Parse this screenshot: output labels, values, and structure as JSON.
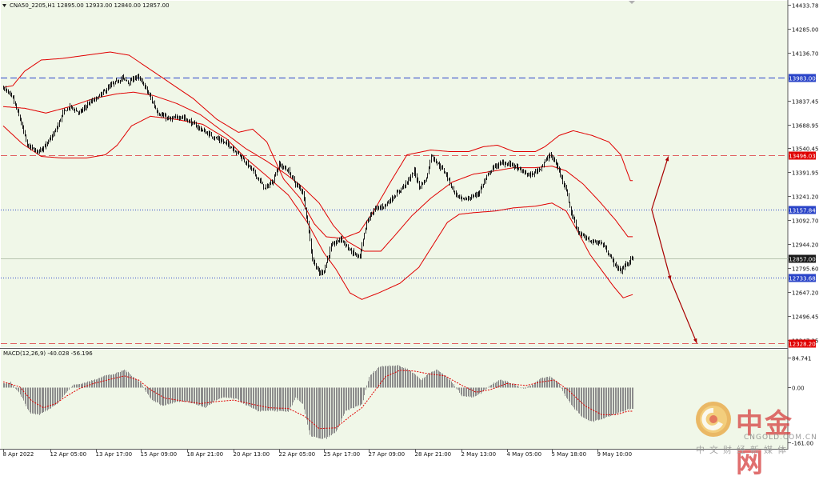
{
  "header": {
    "symbol_line": "CNA50_2205,H1  12895.00 12933.00 12840.00 12857.00",
    "macd_line": "MACD(12,26,9) -40.028 -56.196"
  },
  "colors": {
    "main_bg": "#f0f7e8",
    "candle": "#1a1a1a",
    "band": "#e00000",
    "macd_hist": "#8c8c8c",
    "macd_signal": "#e00000",
    "price_label_bg": "#1a1a1a",
    "blue_line": "#2a44c8",
    "red_line": "#e06060",
    "arrow": "#a80000"
  },
  "watermark": {
    "cn": "中金网",
    "en": "CNGOLD.COM.CN",
    "sub": "中文财经新媒体"
  },
  "chart_data": [
    {
      "type": "candlestick",
      "name": "main",
      "ylim": [
        12347.35,
        14433.78
      ],
      "y_ticks": [
        "14433.78",
        "14285.00",
        "14136.70",
        "13837.45",
        "13688.95",
        "13540.45",
        "13391.95",
        "13241.20",
        "13092.70",
        "12944.20",
        "12795.60",
        "12647.20",
        "12496.45",
        "12347.35"
      ],
      "x_ticks": [
        "8 Apr 2022",
        "12 Apr 05:00",
        "13 Apr 17:00",
        "15 Apr 09:00",
        "18 Apr 21:00",
        "20 Apr 13:00",
        "22 Apr 05:00",
        "25 Apr 17:00",
        "27 Apr 09:00",
        "28 Apr 21:00",
        "2 May 13:00",
        "4 May 05:00",
        "5 May 18:00",
        "9 May 10:00"
      ],
      "levels": [
        {
          "value": 13983.0,
          "label": "13983.00",
          "style": "blue-dash"
        },
        {
          "value": 13496.03,
          "label": "13496.03",
          "style": "red-dash"
        },
        {
          "value": 13157.84,
          "label": "13157.84",
          "style": "blue-dot"
        },
        {
          "value": 12857.0,
          "label": "12857.00",
          "style": "price"
        },
        {
          "value": 12733.68,
          "label": "12733.68",
          "style": "blue-dot"
        },
        {
          "value": 12328.2,
          "label": "12328.20",
          "style": "red-dash"
        }
      ],
      "close_anchors": [
        [
          0,
          13920
        ],
        [
          8,
          13850
        ],
        [
          14,
          13720
        ],
        [
          20,
          13560
        ],
        [
          28,
          13520
        ],
        [
          36,
          13560
        ],
        [
          44,
          13650
        ],
        [
          50,
          13760
        ],
        [
          56,
          13800
        ],
        [
          64,
          13760
        ],
        [
          72,
          13820
        ],
        [
          80,
          13860
        ],
        [
          90,
          13930
        ],
        [
          100,
          13980
        ],
        [
          106,
          13950
        ],
        [
          112,
          13990
        ],
        [
          118,
          13940
        ],
        [
          122,
          13880
        ],
        [
          130,
          13760
        ],
        [
          140,
          13720
        ],
        [
          150,
          13740
        ],
        [
          160,
          13690
        ],
        [
          170,
          13640
        ],
        [
          180,
          13600
        ],
        [
          190,
          13560
        ],
        [
          200,
          13490
        ],
        [
          210,
          13400
        ],
        [
          220,
          13290
        ],
        [
          226,
          13330
        ],
        [
          232,
          13440
        ],
        [
          240,
          13400
        ],
        [
          246,
          13320
        ],
        [
          252,
          13270
        ],
        [
          256,
          13080
        ],
        [
          260,
          12850
        ],
        [
          266,
          12760
        ],
        [
          270,
          12780
        ],
        [
          276,
          12930
        ],
        [
          284,
          12980
        ],
        [
          292,
          12900
        ],
        [
          300,
          12860
        ],
        [
          306,
          13080
        ],
        [
          312,
          13160
        ],
        [
          320,
          13180
        ],
        [
          330,
          13250
        ],
        [
          340,
          13330
        ],
        [
          346,
          13400
        ],
        [
          350,
          13300
        ],
        [
          356,
          13350
        ],
        [
          360,
          13500
        ],
        [
          366,
          13440
        ],
        [
          372,
          13390
        ],
        [
          380,
          13260
        ],
        [
          386,
          13220
        ],
        [
          392,
          13230
        ],
        [
          400,
          13260
        ],
        [
          406,
          13350
        ],
        [
          412,
          13420
        ],
        [
          420,
          13450
        ],
        [
          428,
          13440
        ],
        [
          436,
          13400
        ],
        [
          444,
          13370
        ],
        [
          452,
          13420
        ],
        [
          460,
          13500
        ],
        [
          464,
          13460
        ],
        [
          468,
          13400
        ],
        [
          474,
          13280
        ],
        [
          478,
          13140
        ],
        [
          484,
          13020
        ],
        [
          490,
          12980
        ],
        [
          496,
          12960
        ],
        [
          504,
          12950
        ],
        [
          510,
          12880
        ],
        [
          516,
          12800
        ],
        [
          520,
          12780
        ],
        [
          524,
          12820
        ],
        [
          530,
          12857
        ]
      ],
      "upper_band_anchors": [
        [
          0,
          13920
        ],
        [
          8,
          13930
        ],
        [
          18,
          14020
        ],
        [
          32,
          14090
        ],
        [
          50,
          14100
        ],
        [
          70,
          14120
        ],
        [
          90,
          14140
        ],
        [
          106,
          14120
        ],
        [
          120,
          14050
        ],
        [
          140,
          13950
        ],
        [
          160,
          13850
        ],
        [
          180,
          13720
        ],
        [
          198,
          13640
        ],
        [
          210,
          13660
        ],
        [
          222,
          13580
        ],
        [
          236,
          13350
        ],
        [
          250,
          13230
        ],
        [
          262,
          13070
        ],
        [
          272,
          12990
        ],
        [
          286,
          12980
        ],
        [
          300,
          13020
        ],
        [
          312,
          13150
        ],
        [
          326,
          13330
        ],
        [
          340,
          13500
        ],
        [
          360,
          13530
        ],
        [
          376,
          13520
        ],
        [
          392,
          13520
        ],
        [
          404,
          13550
        ],
        [
          416,
          13560
        ],
        [
          430,
          13520
        ],
        [
          448,
          13520
        ],
        [
          456,
          13550
        ],
        [
          468,
          13620
        ],
        [
          480,
          13650
        ],
        [
          496,
          13620
        ],
        [
          510,
          13580
        ],
        [
          520,
          13500
        ],
        [
          528,
          13340
        ]
      ],
      "middle_band_anchors": [
        [
          0,
          13800
        ],
        [
          18,
          13790
        ],
        [
          36,
          13760
        ],
        [
          56,
          13800
        ],
        [
          76,
          13850
        ],
        [
          96,
          13880
        ],
        [
          110,
          13890
        ],
        [
          126,
          13870
        ],
        [
          146,
          13820
        ],
        [
          166,
          13750
        ],
        [
          186,
          13640
        ],
        [
          204,
          13540
        ],
        [
          222,
          13460
        ],
        [
          238,
          13380
        ],
        [
          252,
          13300
        ],
        [
          266,
          13200
        ],
        [
          278,
          13060
        ],
        [
          290,
          12960
        ],
        [
          304,
          12900
        ],
        [
          318,
          12900
        ],
        [
          330,
          13000
        ],
        [
          344,
          13120
        ],
        [
          360,
          13230
        ],
        [
          378,
          13330
        ],
        [
          396,
          13380
        ],
        [
          414,
          13400
        ],
        [
          430,
          13420
        ],
        [
          448,
          13420
        ],
        [
          462,
          13430
        ],
        [
          474,
          13400
        ],
        [
          488,
          13320
        ],
        [
          502,
          13210
        ],
        [
          516,
          13090
        ],
        [
          526,
          12990
        ]
      ],
      "lower_band_anchors": [
        [
          0,
          13680
        ],
        [
          16,
          13570
        ],
        [
          32,
          13490
        ],
        [
          50,
          13480
        ],
        [
          70,
          13480
        ],
        [
          86,
          13500
        ],
        [
          96,
          13560
        ],
        [
          108,
          13680
        ],
        [
          124,
          13740
        ],
        [
          146,
          13720
        ],
        [
          168,
          13690
        ],
        [
          188,
          13600
        ],
        [
          204,
          13480
        ],
        [
          220,
          13380
        ],
        [
          240,
          13250
        ],
        [
          256,
          13080
        ],
        [
          270,
          12890
        ],
        [
          280,
          12790
        ],
        [
          292,
          12640
        ],
        [
          302,
          12600
        ],
        [
          316,
          12640
        ],
        [
          334,
          12700
        ],
        [
          350,
          12800
        ],
        [
          362,
          12940
        ],
        [
          374,
          13080
        ],
        [
          384,
          13130
        ],
        [
          396,
          13140
        ],
        [
          414,
          13150
        ],
        [
          430,
          13170
        ],
        [
          448,
          13180
        ],
        [
          462,
          13200
        ],
        [
          474,
          13150
        ],
        [
          484,
          13020
        ],
        [
          494,
          12880
        ],
        [
          504,
          12780
        ],
        [
          514,
          12680
        ],
        [
          522,
          12610
        ],
        [
          530,
          12630
        ]
      ],
      "arrows": [
        {
          "from": [
            546,
            13160
          ],
          "to": [
            560,
            13490
          ]
        },
        {
          "from": [
            546,
            13160
          ],
          "to": [
            562,
            12720
          ]
        },
        {
          "from": [
            562,
            12720
          ],
          "to": [
            584,
            12328
          ]
        }
      ],
      "count": 531
    },
    {
      "type": "bar",
      "name": "macd",
      "ylim": [
        -160,
        84.741
      ],
      "y_ticks": [
        "84.741",
        "0.00",
        "-161.00"
      ],
      "hist_anchors": [
        [
          0,
          10
        ],
        [
          6,
          14
        ],
        [
          14,
          -20
        ],
        [
          22,
          -75
        ],
        [
          30,
          -80
        ],
        [
          38,
          -65
        ],
        [
          46,
          -45
        ],
        [
          52,
          -20
        ],
        [
          58,
          5
        ],
        [
          66,
          10
        ],
        [
          76,
          20
        ],
        [
          84,
          32
        ],
        [
          94,
          38
        ],
        [
          102,
          50
        ],
        [
          110,
          28
        ],
        [
          116,
          10
        ],
        [
          124,
          -35
        ],
        [
          134,
          -55
        ],
        [
          140,
          -48
        ],
        [
          146,
          -42
        ],
        [
          154,
          -42
        ],
        [
          162,
          -50
        ],
        [
          170,
          -60
        ],
        [
          178,
          -40
        ],
        [
          186,
          -30
        ],
        [
          196,
          -35
        ],
        [
          206,
          -55
        ],
        [
          214,
          -70
        ],
        [
          222,
          -68
        ],
        [
          232,
          -70
        ],
        [
          240,
          -72
        ],
        [
          246,
          -30
        ],
        [
          252,
          -50
        ],
        [
          258,
          -140
        ],
        [
          266,
          -150
        ],
        [
          272,
          -148
        ],
        [
          280,
          -130
        ],
        [
          288,
          -70
        ],
        [
          296,
          -58
        ],
        [
          302,
          -50
        ],
        [
          308,
          30
        ],
        [
          316,
          58
        ],
        [
          324,
          62
        ],
        [
          332,
          62
        ],
        [
          340,
          52
        ],
        [
          346,
          38
        ],
        [
          352,
          20
        ],
        [
          358,
          40
        ],
        [
          364,
          50
        ],
        [
          370,
          38
        ],
        [
          376,
          20
        ],
        [
          386,
          -25
        ],
        [
          394,
          -30
        ],
        [
          402,
          -18
        ],
        [
          410,
          5
        ],
        [
          418,
          22
        ],
        [
          428,
          10
        ],
        [
          438,
          -5
        ],
        [
          446,
          8
        ],
        [
          452,
          24
        ],
        [
          460,
          30
        ],
        [
          468,
          10
        ],
        [
          472,
          -20
        ],
        [
          480,
          -60
        ],
        [
          488,
          -90
        ],
        [
          496,
          -100
        ],
        [
          506,
          -90
        ],
        [
          514,
          -80
        ],
        [
          522,
          -70
        ],
        [
          526,
          -65
        ]
      ],
      "signal_anchors": [
        [
          0,
          15
        ],
        [
          14,
          0
        ],
        [
          24,
          -40
        ],
        [
          34,
          -60
        ],
        [
          44,
          -48
        ],
        [
          54,
          -25
        ],
        [
          64,
          -5
        ],
        [
          76,
          10
        ],
        [
          90,
          22
        ],
        [
          102,
          32
        ],
        [
          114,
          20
        ],
        [
          124,
          -8
        ],
        [
          136,
          -32
        ],
        [
          150,
          -40
        ],
        [
          166,
          -48
        ],
        [
          180,
          -42
        ],
        [
          194,
          -38
        ],
        [
          210,
          -50
        ],
        [
          224,
          -60
        ],
        [
          240,
          -62
        ],
        [
          254,
          -85
        ],
        [
          266,
          -120
        ],
        [
          280,
          -118
        ],
        [
          292,
          -85
        ],
        [
          302,
          -60
        ],
        [
          312,
          -15
        ],
        [
          322,
          30
        ],
        [
          334,
          48
        ],
        [
          346,
          46
        ],
        [
          358,
          38
        ],
        [
          372,
          32
        ],
        [
          386,
          5
        ],
        [
          398,
          -15
        ],
        [
          410,
          -8
        ],
        [
          424,
          10
        ],
        [
          440,
          4
        ],
        [
          452,
          14
        ],
        [
          464,
          20
        ],
        [
          476,
          -10
        ],
        [
          490,
          -55
        ],
        [
          504,
          -80
        ],
        [
          516,
          -80
        ],
        [
          526,
          -70
        ]
      ]
    }
  ]
}
